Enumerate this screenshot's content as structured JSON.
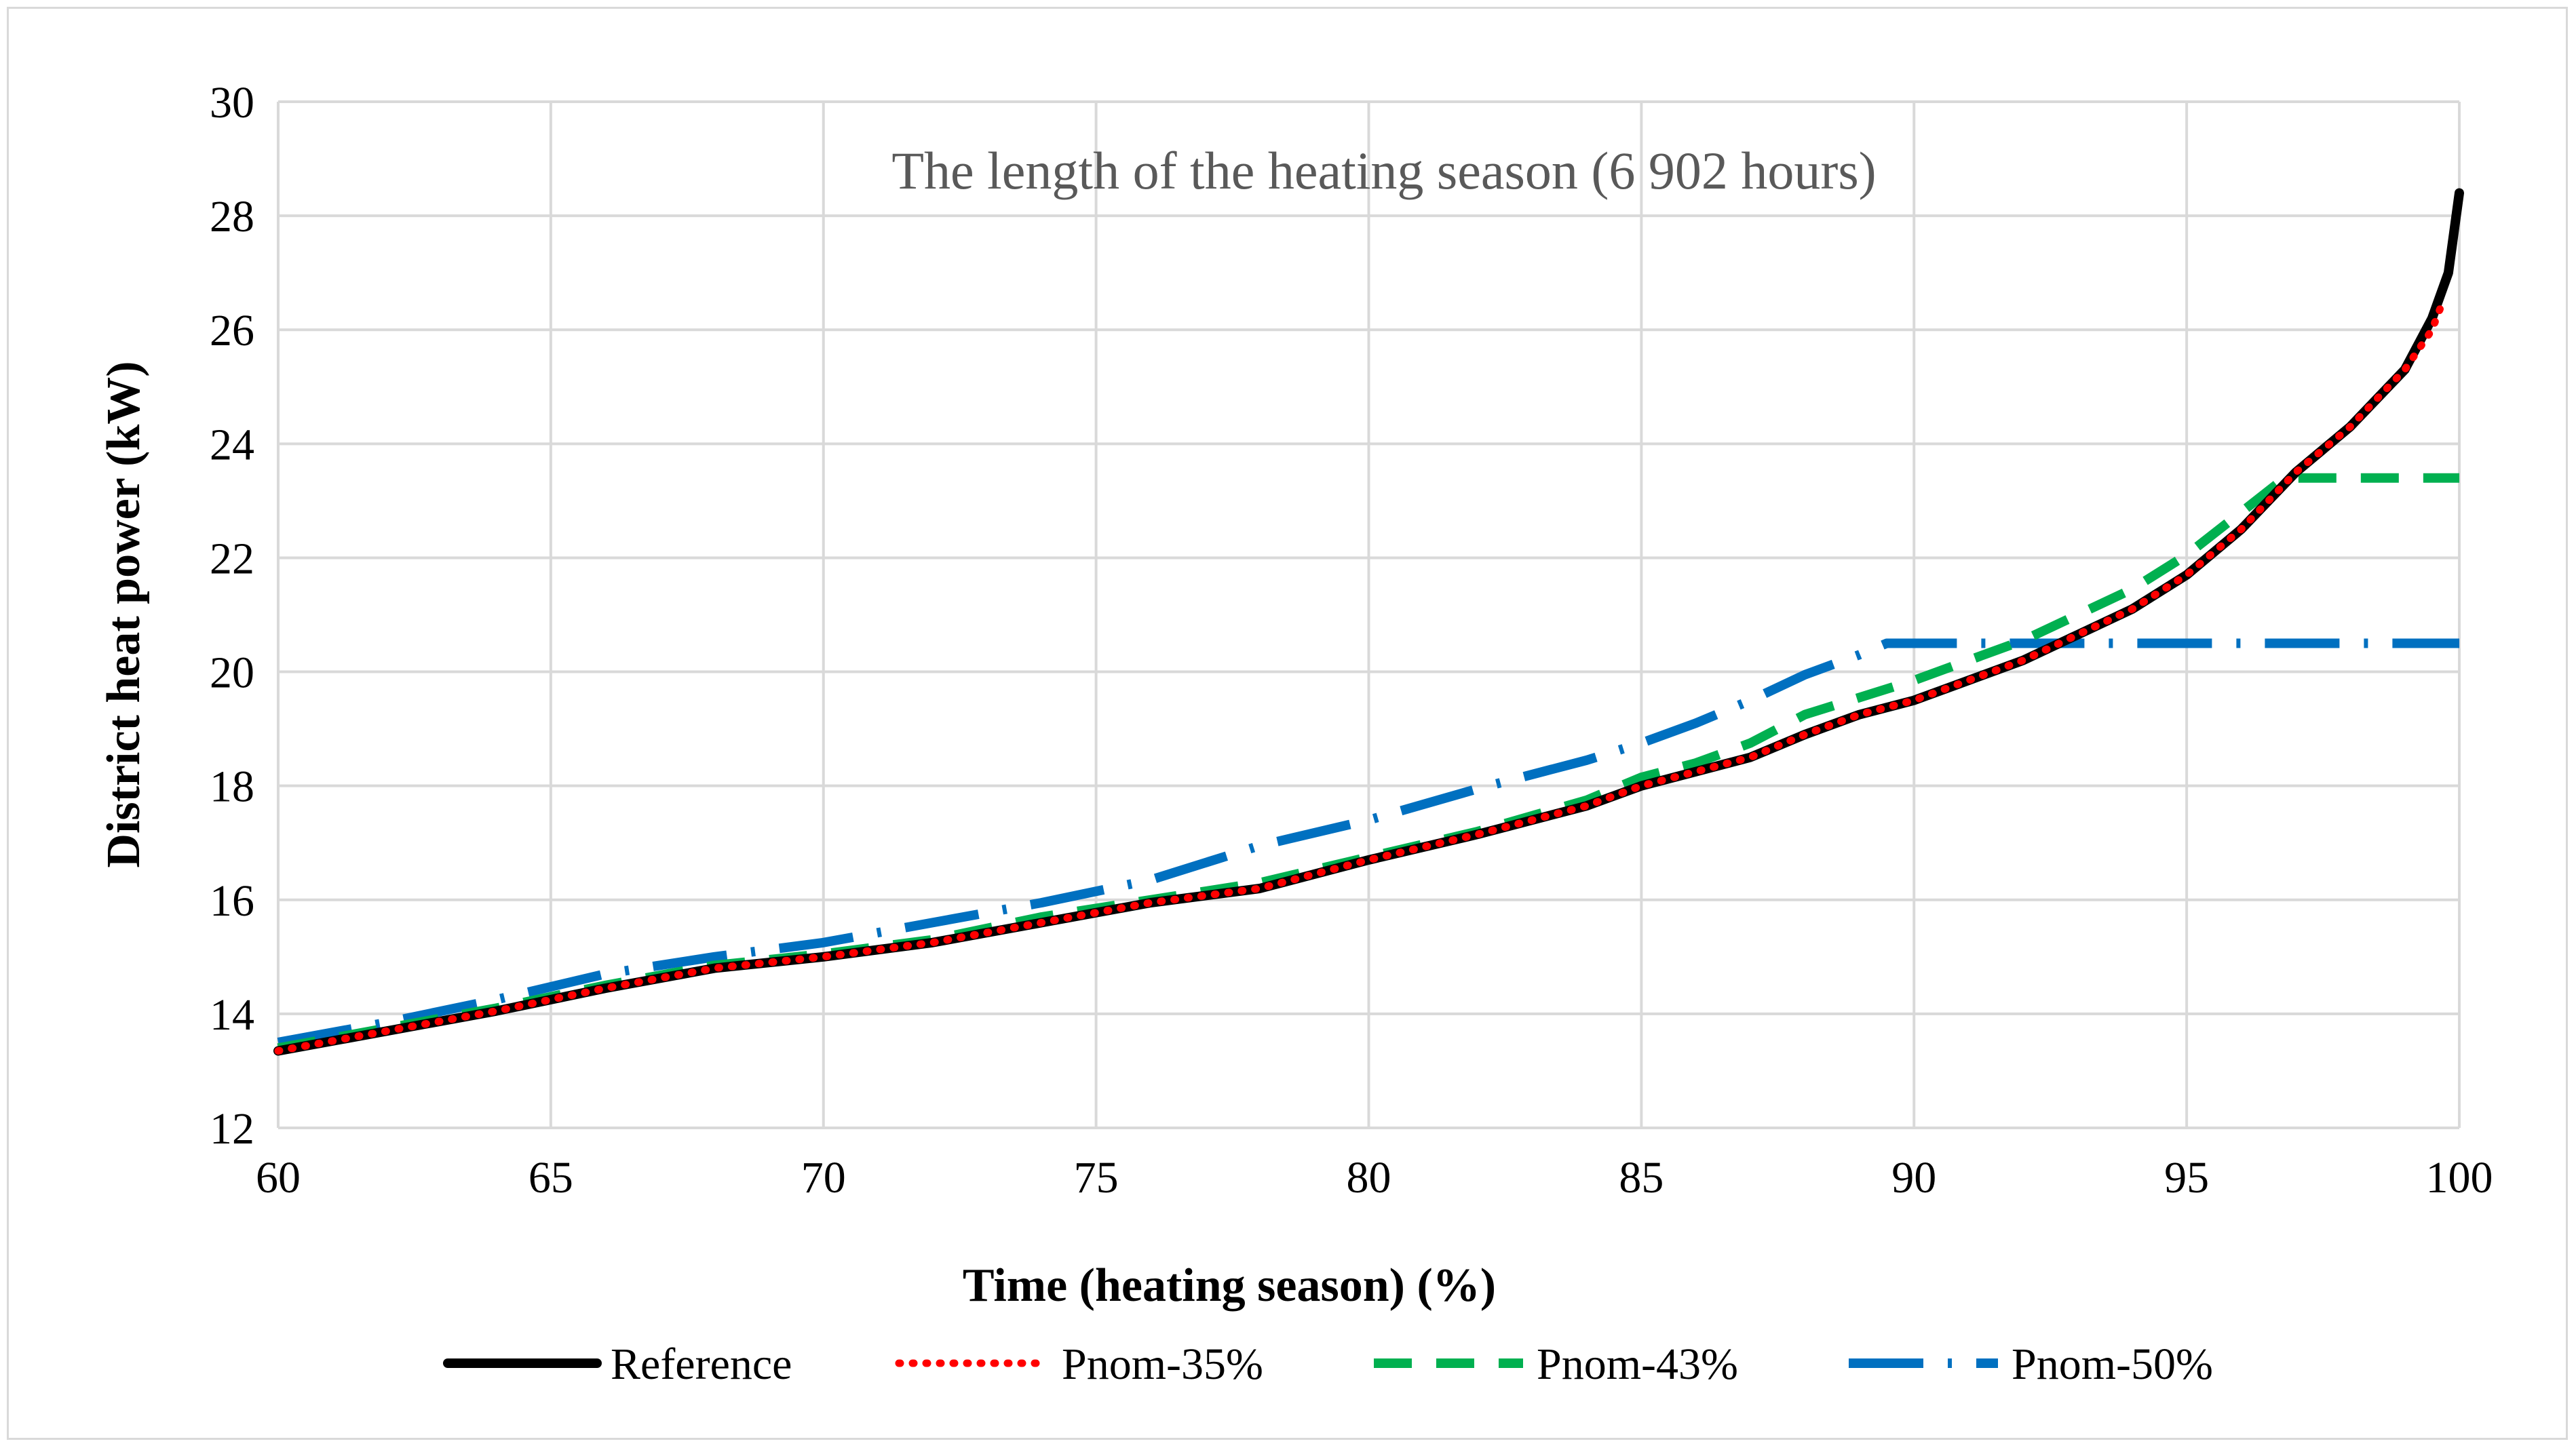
{
  "chart_data": {
    "type": "line",
    "title": "",
    "annotation": "The length of the heating season (6 902 hours)",
    "xlabel": "Time (heating season) (%)",
    "ylabel": "District heat power (kW)",
    "xlim": [
      60,
      100
    ],
    "ylim": [
      12,
      30
    ],
    "xticks": [
      60,
      65,
      70,
      75,
      80,
      85,
      90,
      95,
      100
    ],
    "yticks": [
      12,
      14,
      16,
      18,
      20,
      22,
      24,
      26,
      28,
      30
    ],
    "grid": true,
    "legend_position": "bottom",
    "series": [
      {
        "name": "Reference",
        "color": "#000000",
        "style": "solid",
        "x": [
          60,
          62,
          64,
          66,
          68,
          70,
          72,
          74,
          76,
          78,
          80,
          82,
          84,
          85,
          86,
          87,
          88,
          89,
          90,
          91,
          92,
          93,
          94,
          95,
          96,
          97,
          98,
          99,
          99.5,
          99.8,
          100
        ],
        "y": [
          13.35,
          13.7,
          14.05,
          14.45,
          14.8,
          15.0,
          15.25,
          15.6,
          15.95,
          16.2,
          16.7,
          17.15,
          17.65,
          18.0,
          18.25,
          18.5,
          18.9,
          19.25,
          19.5,
          19.85,
          20.2,
          20.65,
          21.1,
          21.7,
          22.5,
          23.5,
          24.3,
          25.3,
          26.2,
          27.0,
          28.4
        ]
      },
      {
        "name": "Pnom-35%",
        "color": "#ff0000",
        "style": "dotted",
        "x": [
          60,
          62,
          64,
          66,
          68,
          70,
          72,
          74,
          76,
          78,
          80,
          82,
          84,
          85,
          86,
          87,
          88,
          89,
          90,
          91,
          92,
          93,
          94,
          95,
          96,
          97,
          98,
          99,
          99.5,
          99.7
        ],
        "y": [
          13.35,
          13.7,
          14.05,
          14.45,
          14.8,
          15.0,
          15.25,
          15.6,
          15.95,
          16.2,
          16.7,
          17.15,
          17.65,
          18.0,
          18.25,
          18.5,
          18.9,
          19.25,
          19.5,
          19.85,
          20.2,
          20.65,
          21.1,
          21.7,
          22.5,
          23.5,
          24.3,
          25.3,
          26.0,
          26.5
        ]
      },
      {
        "name": "Pnom-43%",
        "color": "#00b050",
        "style": "dashed",
        "x": [
          60,
          62,
          64,
          66,
          68,
          70,
          72,
          74,
          76,
          78,
          80,
          82,
          84,
          85,
          86,
          87,
          88,
          89,
          90,
          91,
          92,
          93,
          94,
          95,
          96,
          96.8,
          97,
          98,
          99,
          100
        ],
        "y": [
          13.4,
          13.75,
          14.1,
          14.5,
          14.85,
          15.05,
          15.3,
          15.7,
          16.0,
          16.3,
          16.75,
          17.2,
          17.75,
          18.15,
          18.4,
          18.75,
          19.25,
          19.55,
          19.85,
          20.2,
          20.55,
          21.0,
          21.45,
          22.05,
          22.8,
          23.4,
          23.4,
          23.4,
          23.4,
          23.4
        ]
      },
      {
        "name": "Pnom-50%",
        "color": "#0070c0",
        "style": "dashdot",
        "x": [
          60,
          62,
          64,
          66,
          68,
          70,
          72,
          74,
          76,
          78,
          80,
          82,
          84,
          85,
          86,
          87,
          88,
          89,
          89.5,
          90,
          92,
          94,
          96,
          98,
          100
        ],
        "y": [
          13.5,
          13.85,
          14.25,
          14.7,
          15.0,
          15.25,
          15.6,
          15.95,
          16.35,
          16.95,
          17.4,
          17.95,
          18.45,
          18.75,
          19.1,
          19.5,
          19.95,
          20.3,
          20.5,
          20.5,
          20.5,
          20.5,
          20.5,
          20.5,
          20.5
        ]
      }
    ]
  }
}
